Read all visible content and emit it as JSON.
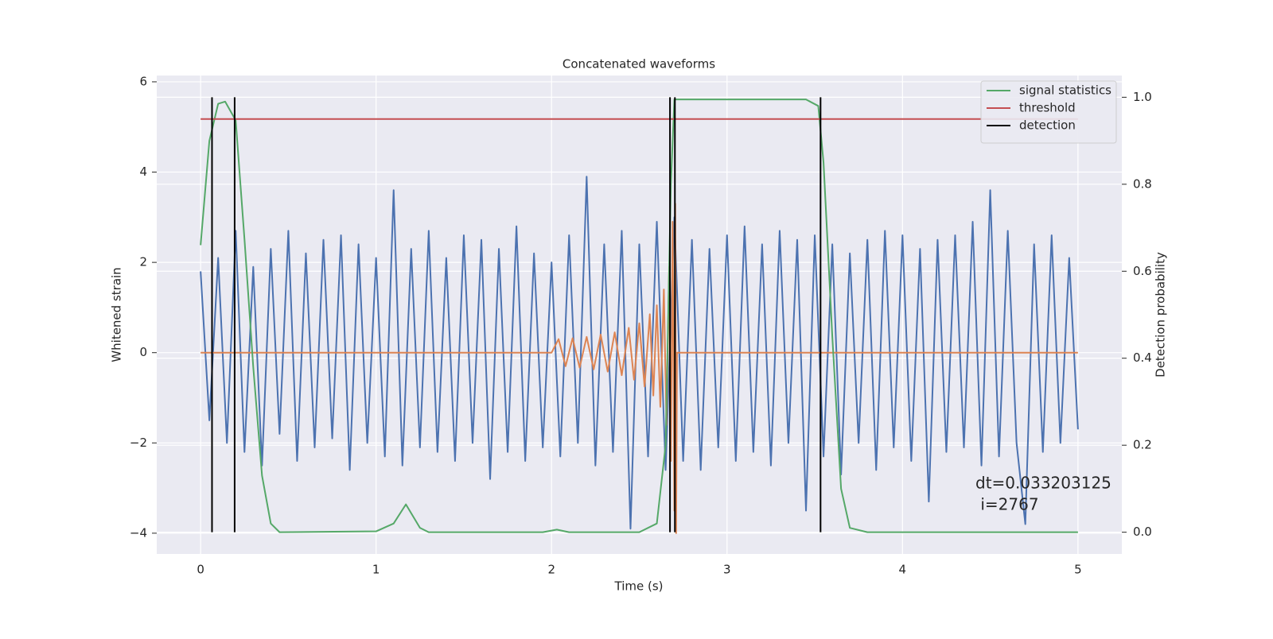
{
  "chart_data": {
    "type": "line",
    "title": "Concatenated waveforms",
    "x_label": "Time (s)",
    "y_label": "Whitened strain",
    "y2_label": "Detection probability",
    "xlim": [
      -0.25,
      5.25
    ],
    "ylim": [
      -4.46,
      6.14
    ],
    "y2lim": [
      -0.05,
      1.05
    ],
    "xticks": [
      0,
      1,
      2,
      3,
      4,
      5
    ],
    "yticks": [
      {
        "value": -4,
        "label": "−4"
      },
      {
        "value": -2,
        "label": "−2"
      },
      0,
      2,
      4,
      6
    ],
    "y2ticks": [
      {
        "value": 0,
        "label": "0.0"
      },
      0.2,
      0.4,
      0.6,
      0.8,
      {
        "value": 1,
        "label": "1.0"
      }
    ],
    "grid": true,
    "legend": "upper right",
    "background": "#eaeaf2",
    "annotation": [
      "dt=0.033203125",
      " i=2767"
    ],
    "series": [
      {
        "color": "#4c72b0",
        "axis": "y",
        "x": [
          0,
          0.05,
          0.1,
          0.15,
          0.2,
          0.25,
          0.3,
          0.35,
          0.4,
          0.45,
          0.5,
          0.55,
          0.6,
          0.65,
          0.7,
          0.75,
          0.8,
          0.85,
          0.9,
          0.95,
          1.0,
          1.05,
          1.1,
          1.15,
          1.2,
          1.25,
          1.3,
          1.35,
          1.4,
          1.45,
          1.5,
          1.55,
          1.6,
          1.65,
          1.7,
          1.75,
          1.8,
          1.85,
          1.9,
          1.95,
          2.0,
          2.05,
          2.1,
          2.15,
          2.2,
          2.25,
          2.3,
          2.35,
          2.4,
          2.45,
          2.5,
          2.55,
          2.6,
          2.65,
          2.7,
          2.75,
          2.8,
          2.85,
          2.9,
          2.95,
          3.0,
          3.05,
          3.1,
          3.15,
          3.2,
          3.25,
          3.3,
          3.35,
          3.4,
          3.45,
          3.5,
          3.55,
          3.6,
          3.65,
          3.7,
          3.75,
          3.8,
          3.85,
          3.9,
          3.95,
          4.0,
          4.05,
          4.1,
          4.15,
          4.2,
          4.25,
          4.3,
          4.35,
          4.4,
          4.45,
          4.5,
          4.55,
          4.6,
          4.65,
          4.7,
          4.75,
          4.8,
          4.85,
          4.9,
          4.95,
          5.0
        ],
        "values": [
          1.8,
          -1.5,
          2.1,
          -2.0,
          2.7,
          -2.2,
          1.9,
          -2.5,
          2.3,
          -1.8,
          2.7,
          -2.4,
          2.2,
          -2.1,
          2.5,
          -1.9,
          2.6,
          -2.6,
          2.4,
          -2.0,
          2.1,
          -2.3,
          3.6,
          -2.5,
          2.3,
          -2.1,
          2.7,
          -2.2,
          2.1,
          -2.4,
          2.6,
          -2.0,
          2.5,
          -2.8,
          2.3,
          -2.2,
          2.8,
          -2.4,
          2.2,
          -2.1,
          2.0,
          -2.3,
          2.6,
          -2.0,
          3.9,
          -2.5,
          2.4,
          -2.2,
          2.7,
          -3.9,
          2.4,
          -2.3,
          2.9,
          -2.6,
          3.0,
          -2.4,
          2.5,
          -2.6,
          2.3,
          -2.1,
          2.6,
          -2.4,
          2.8,
          -2.2,
          2.4,
          -2.5,
          2.7,
          -2.0,
          2.5,
          -3.5,
          2.6,
          -2.3,
          2.4,
          -2.7,
          2.2,
          -2.0,
          2.5,
          -2.6,
          2.7,
          -2.1,
          2.6,
          -2.4,
          2.3,
          -3.3,
          2.5,
          -2.2,
          2.6,
          -2.1,
          2.9,
          -2.5,
          3.6,
          -2.3,
          2.7,
          -2.0,
          -3.8,
          2.4,
          -2.2,
          2.6,
          -2.0,
          2.1,
          -1.7
        ]
      },
      {
        "color": "#dd8452",
        "axis": "y",
        "x": [
          0,
          2.0,
          2.04,
          2.08,
          2.12,
          2.16,
          2.2,
          2.24,
          2.28,
          2.32,
          2.36,
          2.4,
          2.44,
          2.47,
          2.5,
          2.53,
          2.56,
          2.58,
          2.6,
          2.62,
          2.64,
          2.655,
          2.67,
          2.68,
          2.69,
          2.7,
          2.705,
          2.71,
          2.715,
          5.0
        ],
        "values": [
          0,
          0,
          0.3,
          -0.3,
          0.32,
          -0.33,
          0.35,
          -0.37,
          0.4,
          -0.42,
          0.45,
          -0.5,
          0.55,
          -0.6,
          0.65,
          -0.75,
          0.85,
          -0.95,
          1.05,
          -1.2,
          1.4,
          -1.6,
          1.9,
          -2.4,
          2.9,
          -3.5,
          3.3,
          -4.0,
          0,
          0
        ]
      },
      {
        "name": "signal statistics",
        "color": "#55a868",
        "axis": "y2",
        "x": [
          0,
          0.05,
          0.1,
          0.14,
          0.2,
          0.25,
          0.3,
          0.35,
          0.4,
          0.45,
          1.0,
          1.1,
          1.17,
          1.25,
          1.3,
          1.95,
          2.03,
          2.1,
          2.5,
          2.6,
          2.65,
          2.68,
          2.7,
          3.45,
          3.52,
          3.55,
          3.6,
          3.65,
          3.7,
          3.8,
          5.0
        ],
        "values": [
          0.66,
          0.9,
          0.985,
          0.99,
          0.947,
          0.674,
          0.38,
          0.13,
          0.02,
          0,
          0.002,
          0.02,
          0.064,
          0.01,
          0,
          0,
          0.006,
          0,
          0,
          0.02,
          0.2,
          0.8,
          0.995,
          0.995,
          0.98,
          0.85,
          0.45,
          0.1,
          0.01,
          0,
          0
        ]
      },
      {
        "name": "threshold",
        "color": "#c44e52",
        "axis": "y2",
        "x": [
          0,
          5
        ],
        "values": [
          0.95,
          0.95
        ]
      },
      {
        "name": "detection",
        "color": "#000000",
        "axis": "y2",
        "kind": "vlines",
        "x": [
          0.065,
          0.194,
          2.675,
          2.703,
          3.533
        ],
        "ymin": 0,
        "ymax": 1
      }
    ]
  }
}
